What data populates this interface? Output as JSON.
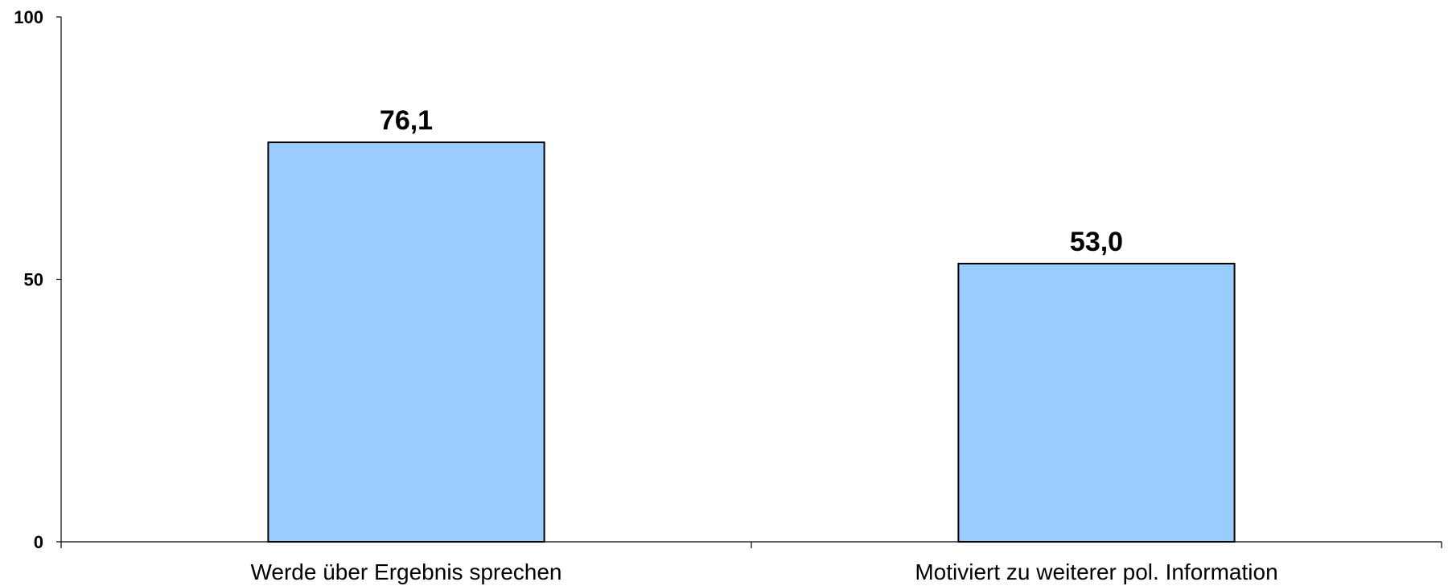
{
  "chart_data": {
    "type": "bar",
    "categories": [
      "Werde über Ergebnis sprechen",
      "Motiviert zu weiterer pol. Information"
    ],
    "values": [
      76.1,
      53.0
    ],
    "value_labels": [
      "76,1",
      "53,0"
    ],
    "title": "",
    "xlabel": "",
    "ylabel": "",
    "ylim": [
      0,
      100
    ],
    "yticks": [
      0,
      50,
      100
    ],
    "ytick_labels": [
      "0",
      "50",
      "100"
    ],
    "grid": false,
    "legend": "none",
    "bar_color": "#99CCFF",
    "bar_edge_color": "#000000"
  }
}
